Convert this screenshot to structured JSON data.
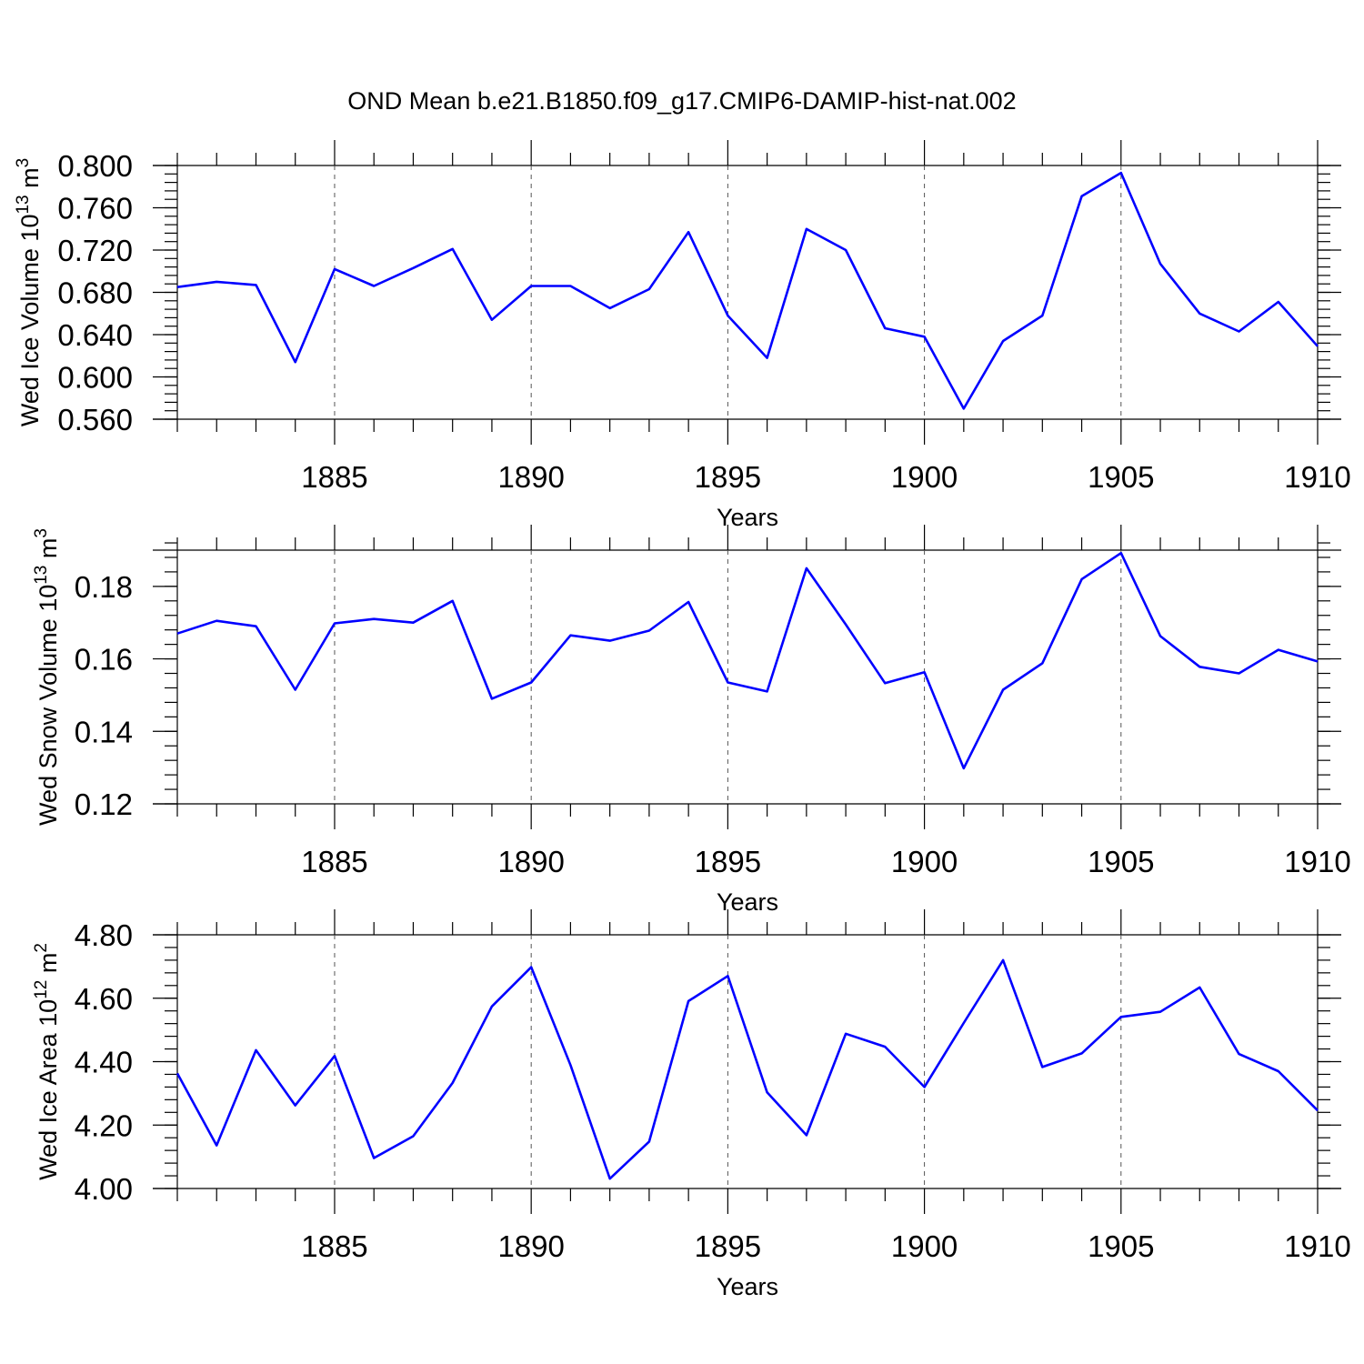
{
  "title": "OND Mean b.e21.B1850.f09_g17.CMIP6-DAMIP-hist-nat.002",
  "colors": {
    "series": "#0000ff",
    "axes": "#000000",
    "grid": "#555555"
  },
  "chart_data": [
    {
      "type": "line",
      "ylabel": {
        "main": "Wed Ice Volume 10",
        "exp": "13",
        "unit": " m",
        "unit_exp": "3"
      },
      "xlabel": "Years",
      "xlim": [
        1881,
        1910
      ],
      "ylim": [
        0.56,
        0.8
      ],
      "yticks": [
        0.56,
        0.6,
        0.64,
        0.68,
        0.72,
        0.76,
        0.8
      ],
      "ytick_labels": [
        "0.560",
        "0.600",
        "0.640",
        "0.680",
        "0.720",
        "0.760",
        "0.800"
      ],
      "yminor_step": 0.008,
      "xticks": [
        1885,
        1890,
        1895,
        1900,
        1905,
        1910
      ],
      "xtick_labels": [
        "1885",
        "1890",
        "1895",
        "1900",
        "1905",
        "1910"
      ],
      "grid": "vertical dashed at major x ticks",
      "series": [
        {
          "name": "ice volume",
          "x": [
            1881,
            1882,
            1883,
            1884,
            1885,
            1886,
            1887,
            1888,
            1889,
            1890,
            1891,
            1892,
            1893,
            1894,
            1895,
            1896,
            1897,
            1898,
            1899,
            1900,
            1901,
            1902,
            1903,
            1904,
            1905,
            1906,
            1907,
            1908,
            1909,
            1910
          ],
          "values": [
            0.685,
            0.69,
            0.687,
            0.614,
            0.702,
            0.686,
            0.703,
            0.721,
            0.654,
            0.686,
            0.686,
            0.665,
            0.683,
            0.737,
            0.658,
            0.618,
            0.74,
            0.72,
            0.646,
            0.638,
            0.57,
            0.634,
            0.658,
            0.771,
            0.793,
            0.707,
            0.66,
            0.643,
            0.671,
            0.629
          ]
        }
      ]
    },
    {
      "type": "line",
      "ylabel": {
        "main": "Wed Snow Volume 10",
        "exp": "13",
        "unit": " m",
        "unit_exp": "3"
      },
      "xlabel": "Years",
      "xlim": [
        1881,
        1910
      ],
      "ylim": [
        0.12,
        0.19
      ],
      "yticks": [
        0.12,
        0.14,
        0.16,
        0.18
      ],
      "ytick_labels": [
        "0.12",
        "0.14",
        "0.16",
        "0.18"
      ],
      "yminor_step": 0.004,
      "xticks": [
        1885,
        1890,
        1895,
        1900,
        1905,
        1910
      ],
      "xtick_labels": [
        "1885",
        "1890",
        "1895",
        "1900",
        "1905",
        "1910"
      ],
      "grid": "vertical dashed at major x ticks",
      "series": [
        {
          "name": "snow volume",
          "x": [
            1881,
            1882,
            1883,
            1884,
            1885,
            1886,
            1887,
            1888,
            1889,
            1890,
            1891,
            1892,
            1893,
            1894,
            1895,
            1896,
            1897,
            1898,
            1899,
            1900,
            1901,
            1902,
            1903,
            1904,
            1905,
            1906,
            1907,
            1908,
            1909,
            1910
          ],
          "values": [
            0.167,
            0.1705,
            0.169,
            0.1515,
            0.1698,
            0.171,
            0.17,
            0.176,
            0.149,
            0.1535,
            0.1665,
            0.165,
            0.1678,
            0.1757,
            0.1535,
            0.151,
            0.185,
            0.1695,
            0.1533,
            0.1563,
            0.1298,
            0.1515,
            0.1588,
            0.182,
            0.1892,
            0.1663,
            0.1578,
            0.156,
            0.1625,
            0.1593
          ]
        }
      ]
    },
    {
      "type": "line",
      "ylabel": {
        "main": "Wed Ice Area 10",
        "exp": "12",
        "unit": " m",
        "unit_exp": "2"
      },
      "xlabel": "Years",
      "xlim": [
        1881,
        1910
      ],
      "ylim": [
        4.0,
        4.8
      ],
      "yticks": [
        4.0,
        4.2,
        4.4,
        4.6,
        4.8
      ],
      "ytick_labels": [
        "4.00",
        "4.20",
        "4.40",
        "4.60",
        "4.80"
      ],
      "yminor_step": 0.04,
      "xticks": [
        1885,
        1890,
        1895,
        1900,
        1905,
        1910
      ],
      "xtick_labels": [
        "1885",
        "1890",
        "1895",
        "1900",
        "1905",
        "1910"
      ],
      "grid": "vertical dashed at major x ticks",
      "series": [
        {
          "name": "ice area",
          "x": [
            1881,
            1882,
            1883,
            1884,
            1885,
            1886,
            1887,
            1888,
            1889,
            1890,
            1891,
            1892,
            1893,
            1894,
            1895,
            1896,
            1897,
            1898,
            1899,
            1900,
            1901,
            1902,
            1903,
            1904,
            1905,
            1906,
            1907,
            1908,
            1909,
            1910
          ],
          "values": [
            4.363,
            4.136,
            4.436,
            4.262,
            4.418,
            4.096,
            4.165,
            4.333,
            4.574,
            4.698,
            4.389,
            4.031,
            4.148,
            4.591,
            4.67,
            4.303,
            4.168,
            4.488,
            4.447,
            4.32,
            4.522,
            4.72,
            4.383,
            4.426,
            4.541,
            4.557,
            4.634,
            4.424,
            4.37,
            4.246
          ]
        }
      ]
    }
  ]
}
